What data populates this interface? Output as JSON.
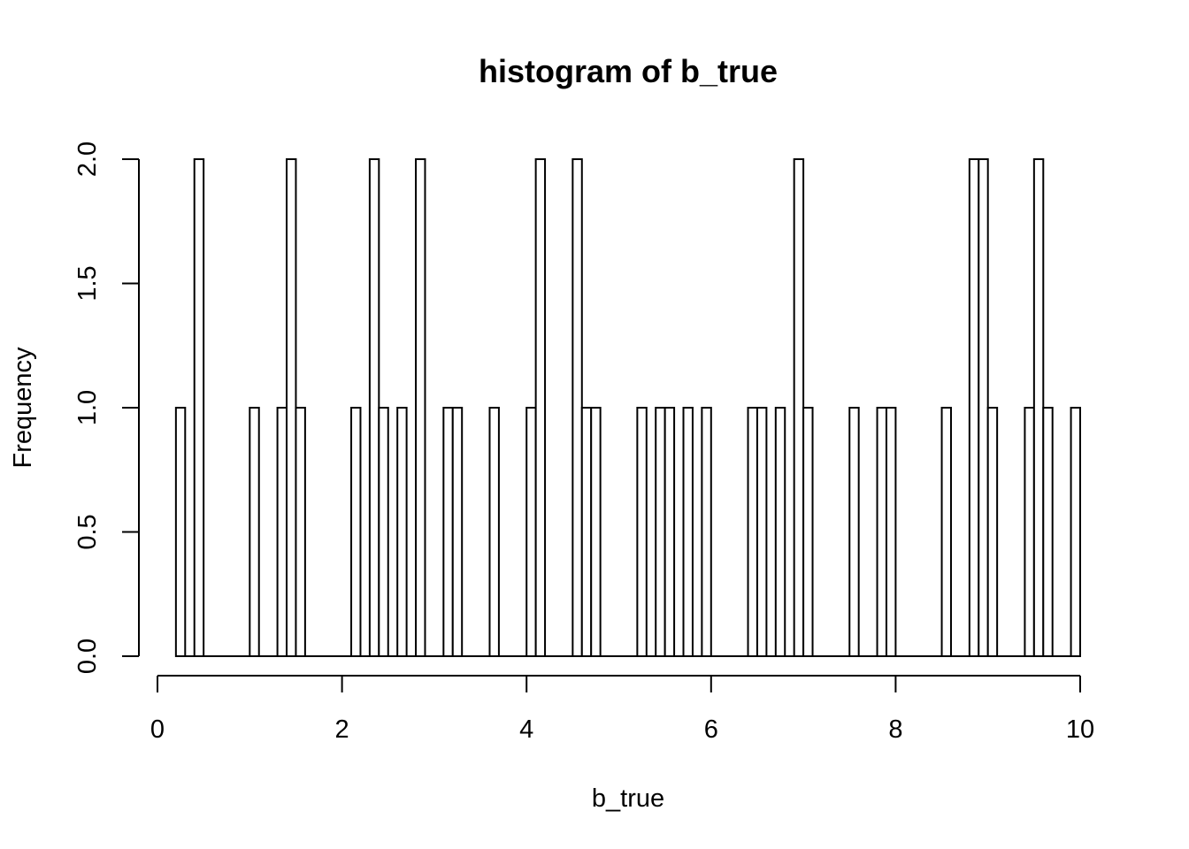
{
  "chart_data": {
    "type": "bar",
    "title": "histogram of b_true",
    "xlabel": "b_true",
    "ylabel": "Frequency",
    "xlim": [
      0,
      10
    ],
    "ylim": [
      0,
      2
    ],
    "x_ticks": [
      0,
      2,
      4,
      6,
      8,
      10
    ],
    "x_tick_labels": [
      "0",
      "2",
      "4",
      "6",
      "8",
      "10"
    ],
    "y_ticks": [
      0,
      0.5,
      1,
      1.5,
      2
    ],
    "y_tick_labels": [
      "0.0",
      "0.5",
      "1.0",
      "1.5",
      "2.0"
    ],
    "bin_width": 0.1,
    "bin_start": 0.2,
    "bin_end": 10,
    "nonzero_bins": [
      {
        "bin_start": 0.2,
        "count": 1
      },
      {
        "bin_start": 0.4,
        "count": 2
      },
      {
        "bin_start": 1.0,
        "count": 1
      },
      {
        "bin_start": 1.3,
        "count": 1
      },
      {
        "bin_start": 1.4,
        "count": 2
      },
      {
        "bin_start": 1.5,
        "count": 1
      },
      {
        "bin_start": 2.1,
        "count": 1
      },
      {
        "bin_start": 2.3,
        "count": 2
      },
      {
        "bin_start": 2.4,
        "count": 1
      },
      {
        "bin_start": 2.6,
        "count": 1
      },
      {
        "bin_start": 2.8,
        "count": 2
      },
      {
        "bin_start": 3.1,
        "count": 1
      },
      {
        "bin_start": 3.2,
        "count": 1
      },
      {
        "bin_start": 3.6,
        "count": 1
      },
      {
        "bin_start": 4.0,
        "count": 1
      },
      {
        "bin_start": 4.1,
        "count": 2
      },
      {
        "bin_start": 4.5,
        "count": 2
      },
      {
        "bin_start": 4.6,
        "count": 1
      },
      {
        "bin_start": 4.7,
        "count": 1
      },
      {
        "bin_start": 5.2,
        "count": 1
      },
      {
        "bin_start": 5.4,
        "count": 1
      },
      {
        "bin_start": 5.5,
        "count": 1
      },
      {
        "bin_start": 5.7,
        "count": 1
      },
      {
        "bin_start": 5.9,
        "count": 1
      },
      {
        "bin_start": 6.4,
        "count": 1
      },
      {
        "bin_start": 6.5,
        "count": 1
      },
      {
        "bin_start": 6.7,
        "count": 1
      },
      {
        "bin_start": 6.9,
        "count": 2
      },
      {
        "bin_start": 7.0,
        "count": 1
      },
      {
        "bin_start": 7.5,
        "count": 1
      },
      {
        "bin_start": 7.8,
        "count": 1
      },
      {
        "bin_start": 7.9,
        "count": 1
      },
      {
        "bin_start": 8.5,
        "count": 1
      },
      {
        "bin_start": 8.8,
        "count": 2
      },
      {
        "bin_start": 8.9,
        "count": 2
      },
      {
        "bin_start": 9.0,
        "count": 1
      },
      {
        "bin_start": 9.4,
        "count": 1
      },
      {
        "bin_start": 9.5,
        "count": 2
      },
      {
        "bin_start": 9.6,
        "count": 1
      },
      {
        "bin_start": 9.9,
        "count": 1
      }
    ],
    "bar_fill": "#ffffff",
    "bar_stroke": "#000000",
    "grid": false
  }
}
